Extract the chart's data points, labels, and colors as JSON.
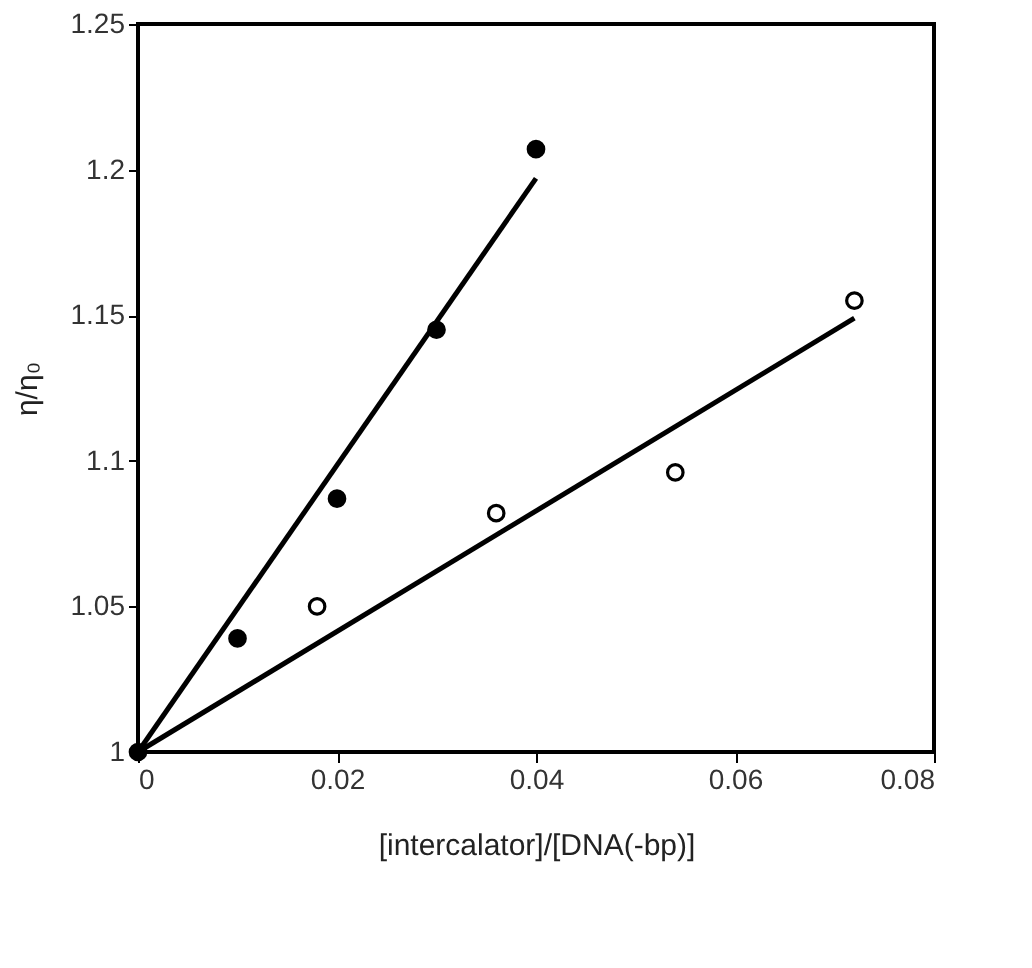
{
  "chart_data": {
    "type": "scatter",
    "xlabel": "[intercalator]/[DNA(-bp)]",
    "ylabel": "η/η₀",
    "xlim": [
      0,
      0.08
    ],
    "xticks": [
      0,
      0.02,
      0.04,
      0.06,
      0.08
    ],
    "ylim": [
      1,
      1.25
    ],
    "yticks": [
      1,
      1.05,
      1.1,
      1.15,
      1.2,
      1.25
    ],
    "grid": false,
    "series": [
      {
        "type": "line",
        "color": "#000000",
        "x": [
          0,
          0.04
        ],
        "values": [
          1,
          1.197
        ],
        "marker": "none",
        "line_style": "solid"
      },
      {
        "type": "line",
        "color": "#000000",
        "x": [
          0,
          0.072
        ],
        "values": [
          1,
          1.149
        ],
        "marker": "none",
        "line_style": "solid"
      },
      {
        "color": "#000000",
        "marker": "circle",
        "x": [
          0,
          0.01,
          0.02,
          0.03,
          0.04
        ],
        "values": [
          1,
          1.039,
          1.087,
          1.145,
          1.207
        ]
      },
      {
        "color": "#ffffff",
        "marker": "circle",
        "x": [
          0.018,
          0.036,
          0.054,
          0.072
        ],
        "values": [
          1.05,
          1.082,
          1.096,
          1.155
        ]
      }
    ]
  }
}
